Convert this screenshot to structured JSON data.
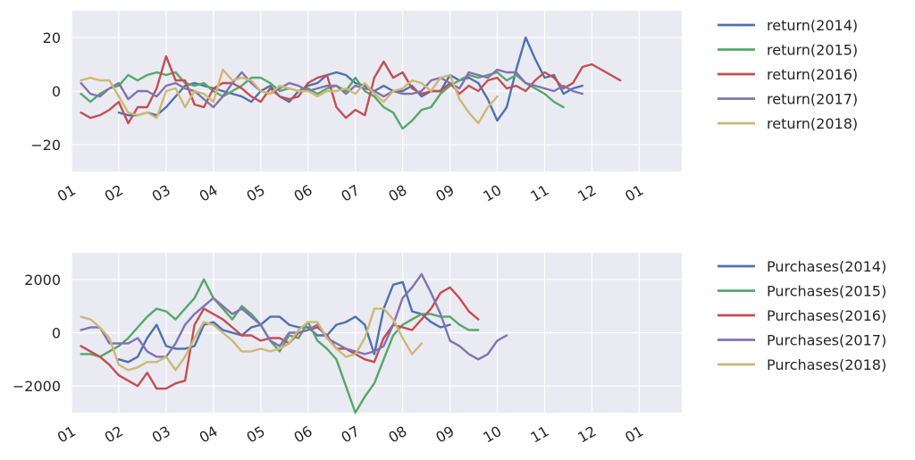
{
  "chart_data": [
    {
      "type": "line",
      "xlim": [
        0,
        12.9
      ],
      "ylim": [
        -30,
        30
      ],
      "yticks": [
        -20,
        0,
        20
      ],
      "ytick_labels": [
        "−20",
        "0",
        "20"
      ],
      "xtick_labels": [
        "01",
        "02",
        "03",
        "04",
        "05",
        "06",
        "07",
        "08",
        "09",
        "10",
        "11",
        "12",
        "01"
      ],
      "grid": true,
      "legend_position": "outside-right",
      "x": [
        0.2,
        0.4,
        0.6,
        0.8,
        1.0,
        1.2,
        1.4,
        1.6,
        1.8,
        2.0,
        2.2,
        2.4,
        2.6,
        2.8,
        3.0,
        3.2,
        3.4,
        3.6,
        3.8,
        4.0,
        4.2,
        4.4,
        4.6,
        4.8,
        5.0,
        5.2,
        5.4,
        5.6,
        5.8,
        6.0,
        6.2,
        6.4,
        6.6,
        6.8,
        7.0,
        7.2,
        7.4,
        7.6,
        7.8,
        8.0,
        8.2,
        8.4,
        8.6,
        8.8,
        9.0,
        9.2,
        9.4,
        9.6,
        9.8,
        10.0,
        10.2,
        10.4,
        10.6,
        10.8,
        11.0,
        11.2,
        11.4,
        11.6,
        11.8,
        12.0,
        12.2,
        12.4,
        12.6,
        12.8
      ],
      "series": [
        {
          "name": "return(2014)",
          "color": "#4c72b0",
          "values": [
            null,
            null,
            null,
            null,
            -8,
            -9,
            -9,
            -8,
            -9,
            -6,
            -2,
            2,
            3,
            2,
            1,
            0,
            -1,
            -2,
            -4,
            0,
            2,
            -2,
            -4,
            0,
            2,
            3,
            6,
            7,
            6,
            3,
            2,
            0,
            2,
            0,
            0,
            2,
            -2,
            0,
            0,
            6,
            4,
            5,
            3,
            -3,
            -11,
            -6,
            8,
            20,
            12,
            5,
            6,
            -1,
            1,
            2,
            null,
            null,
            null,
            null,
            null,
            null,
            null,
            null,
            null,
            null
          ]
        },
        {
          "name": "return(2015)",
          "color": "#55a868",
          "values": [
            -1,
            -4,
            -1,
            1,
            2,
            6,
            4,
            6,
            7,
            6,
            7,
            3,
            2,
            3,
            0,
            -2,
            0,
            2,
            5,
            5,
            3,
            0,
            1,
            0,
            1,
            -1,
            1,
            2,
            0,
            5,
            0,
            -2,
            -6,
            -8,
            -14,
            -11,
            -7,
            -6,
            -1,
            2,
            4,
            6,
            5,
            6,
            7,
            4,
            6,
            3,
            1,
            -1,
            -4,
            -6,
            null,
            null,
            null,
            null,
            null,
            null,
            null,
            null,
            null,
            null,
            null,
            null
          ]
        },
        {
          "name": "return(2016)",
          "color": "#c44e52",
          "values": [
            -8,
            -10,
            -9,
            -7,
            -4,
            -12,
            -6,
            -6,
            1,
            13,
            4,
            4,
            -5,
            -6,
            1,
            3,
            3,
            1,
            -2,
            -4,
            1,
            -2,
            -3,
            -2,
            3,
            5,
            6,
            -6,
            -10,
            -7,
            -9,
            5,
            11,
            5,
            7,
            1,
            -1,
            0,
            0,
            3,
            -1,
            2,
            0,
            4,
            5,
            1,
            2,
            0,
            4,
            7,
            5,
            1,
            3,
            9,
            10,
            8,
            6,
            4,
            null,
            null,
            null,
            null,
            null,
            null
          ]
        },
        {
          "name": "return(2017)",
          "color": "#8172b2",
          "values": [
            3,
            -1,
            -2,
            1,
            3,
            -3,
            0,
            0,
            -2,
            2,
            3,
            1,
            0,
            -3,
            -6,
            -2,
            3,
            7,
            3,
            0,
            -1,
            1,
            3,
            2,
            0,
            1,
            2,
            2,
            -1,
            2,
            1,
            0,
            -2,
            0,
            -1,
            -1,
            0,
            4,
            5,
            3,
            1,
            7,
            6,
            5,
            8,
            7,
            7,
            3,
            2,
            1,
            0,
            2,
            0,
            -1,
            null,
            null,
            null,
            null,
            null,
            null,
            null,
            null,
            null,
            null
          ]
        },
        {
          "name": "return(2018)",
          "color": "#ccb974",
          "values": [
            4,
            5,
            4,
            4,
            -2,
            -8,
            -9,
            -8,
            -10,
            0,
            1,
            -6,
            0,
            -1,
            -4,
            8,
            4,
            5,
            4,
            0,
            -1,
            2,
            1,
            0,
            0,
            -2,
            0,
            0,
            1,
            -1,
            3,
            -1,
            -4,
            0,
            1,
            4,
            3,
            0,
            5,
            6,
            -3,
            -8,
            -12,
            -6,
            -2,
            null,
            null,
            null,
            null,
            null,
            null,
            null,
            null,
            null,
            null,
            null,
            null,
            null,
            null,
            null,
            null,
            null,
            null,
            null
          ]
        }
      ]
    },
    {
      "type": "line",
      "xlim": [
        0,
        12.9
      ],
      "ylim": [
        -3000,
        3000
      ],
      "yticks": [
        -2000,
        0,
        2000
      ],
      "ytick_labels": [
        "−2000",
        "0",
        "2000"
      ],
      "xtick_labels": [
        "01",
        "02",
        "03",
        "04",
        "05",
        "06",
        "07",
        "08",
        "09",
        "10",
        "11",
        "12",
        "01"
      ],
      "grid": true,
      "legend_position": "outside-right",
      "x": [
        0.2,
        0.4,
        0.6,
        0.8,
        1.0,
        1.2,
        1.4,
        1.6,
        1.8,
        2.0,
        2.2,
        2.4,
        2.6,
        2.8,
        3.0,
        3.2,
        3.4,
        3.6,
        3.8,
        4.0,
        4.2,
        4.4,
        4.6,
        4.8,
        5.0,
        5.2,
        5.4,
        5.6,
        5.8,
        6.0,
        6.2,
        6.4,
        6.6,
        6.8,
        7.0,
        7.2,
        7.4,
        7.6,
        7.8,
        8.0,
        8.2,
        8.4,
        8.6,
        8.8,
        9.0,
        9.2,
        9.4,
        9.6,
        9.8,
        10.0,
        10.2,
        10.4,
        10.6,
        10.8,
        11.0,
        11.2,
        11.4,
        11.6,
        11.8,
        12.0,
        12.2,
        12.4,
        12.6,
        12.8
      ],
      "series": [
        {
          "name": "Purchases(2014)",
          "color": "#4c72b0",
          "values": [
            null,
            null,
            null,
            null,
            -1000,
            -1100,
            -900,
            -200,
            300,
            -500,
            -600,
            -600,
            -500,
            300,
            400,
            100,
            0,
            -100,
            200,
            300,
            600,
            600,
            300,
            200,
            200,
            -100,
            -100,
            300,
            400,
            600,
            300,
            -800,
            900,
            1800,
            1900,
            800,
            700,
            400,
            200,
            300,
            null,
            null,
            null,
            null,
            null,
            null,
            null,
            null,
            null,
            null,
            null,
            null,
            null,
            null,
            null,
            null,
            null,
            null,
            null,
            null,
            null,
            null,
            null,
            null
          ]
        },
        {
          "name": "Purchases(2015)",
          "color": "#55a868",
          "values": [
            -800,
            -800,
            -900,
            -700,
            -500,
            -200,
            200,
            600,
            900,
            800,
            500,
            900,
            1300,
            2000,
            1300,
            900,
            500,
            1000,
            700,
            300,
            -300,
            -700,
            -100,
            -200,
            400,
            -300,
            -600,
            -1000,
            -2000,
            -3000,
            -2400,
            -1900,
            -1000,
            -100,
            300,
            500,
            700,
            700,
            600,
            600,
            300,
            100,
            100,
            null,
            null,
            null,
            null,
            null,
            null,
            null,
            null,
            null,
            null,
            null,
            null,
            null,
            null,
            null,
            null,
            null,
            null,
            null,
            null,
            null
          ]
        },
        {
          "name": "Purchases(2016)",
          "color": "#c44e52",
          "values": [
            -500,
            -700,
            -900,
            -1200,
            -1600,
            -1800,
            -2000,
            -1500,
            -2100,
            -2100,
            -1900,
            -1800,
            300,
            900,
            700,
            500,
            200,
            -100,
            -100,
            -300,
            -200,
            -200,
            -400,
            0,
            100,
            200,
            -100,
            -600,
            -600,
            -800,
            -1000,
            -1100,
            -200,
            300,
            200,
            100,
            500,
            900,
            1500,
            1700,
            1300,
            800,
            500,
            null,
            null,
            null,
            null,
            null,
            null,
            null,
            null,
            null,
            null,
            null,
            null,
            null,
            null,
            null,
            null,
            null,
            null,
            null,
            null,
            null
          ]
        },
        {
          "name": "Purchases(2017)",
          "color": "#8172b2",
          "values": [
            100,
            200,
            200,
            -400,
            -400,
            -400,
            -200,
            -700,
            -900,
            -900,
            -400,
            300,
            700,
            1000,
            1300,
            1000,
            700,
            900,
            600,
            300,
            -300,
            -500,
            0,
            0,
            100,
            300,
            -200,
            -400,
            -600,
            -700,
            -800,
            -700,
            -500,
            300,
            1300,
            1700,
            2200,
            1500,
            700,
            -300,
            -500,
            -800,
            -1000,
            -800,
            -300,
            -100,
            null,
            null,
            null,
            null,
            null,
            null,
            null,
            null,
            null,
            null,
            null,
            null,
            null,
            null,
            null,
            null,
            null,
            null
          ]
        },
        {
          "name": "Purchases(2018)",
          "color": "#ccb974",
          "values": [
            600,
            500,
            200,
            -200,
            -1200,
            -1400,
            -1300,
            -1100,
            -1100,
            -900,
            -1400,
            -900,
            -200,
            400,
            300,
            0,
            -300,
            -700,
            -700,
            -600,
            -700,
            -600,
            -400,
            100,
            400,
            400,
            -200,
            -600,
            -900,
            -800,
            -200,
            900,
            900,
            500,
            -200,
            -800,
            -400,
            null,
            null,
            null,
            null,
            null,
            null,
            null,
            null,
            null,
            null,
            null,
            null,
            null,
            null,
            null,
            null,
            null,
            null,
            null,
            null,
            null,
            null,
            null,
            null,
            null,
            null,
            null
          ]
        }
      ]
    }
  ]
}
